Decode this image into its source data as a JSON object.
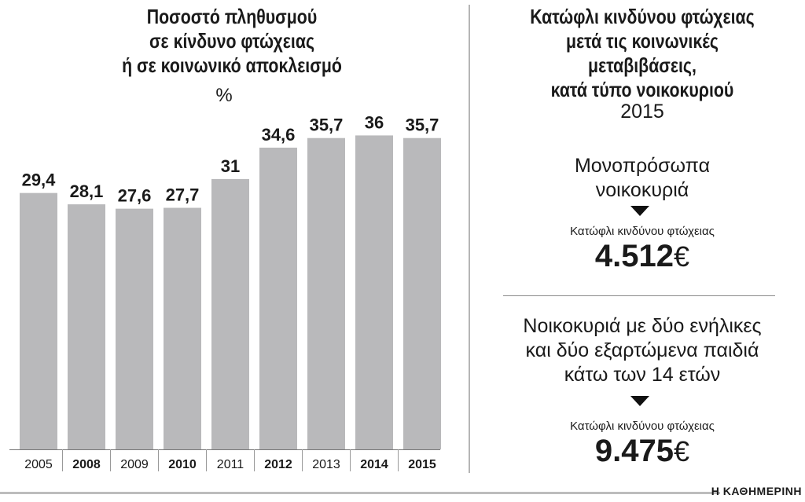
{
  "left": {
    "title_lines": [
      "Ποσοστό πληθυσμού",
      "σε κίνδυνο φτώχειας",
      "ή σε κοινωνικό αποκλεισμό"
    ],
    "unit": "%"
  },
  "chart_data": {
    "type": "bar",
    "categories": [
      "2005",
      "2008",
      "2009",
      "2010",
      "2011",
      "2012",
      "2013",
      "2014",
      "2015"
    ],
    "category_bold": [
      false,
      true,
      false,
      true,
      false,
      true,
      false,
      true,
      true
    ],
    "values": [
      29.4,
      28.1,
      27.6,
      27.7,
      31,
      34.6,
      35.7,
      36,
      35.7
    ],
    "value_labels": [
      "29,4",
      "28,1",
      "27,6",
      "27,7",
      "31",
      "34,6",
      "35,7",
      "36",
      "35,7"
    ],
    "title": "Ποσοστό πληθυσμού σε κίνδυνο φτώχειας ή σε κοινωνικό αποκλεισμό",
    "ylabel": "%",
    "ylim": [
      0,
      38
    ],
    "grid": false,
    "bar_color": "#b9b9bb"
  },
  "right": {
    "title_lines": [
      "Κατώφλι κινδύνου φτώχειας",
      "μετά τις κοινωνικές",
      "μεταβιβάσεις,",
      "κατά τύπο νοικοκυριού"
    ],
    "year": "2015",
    "households": [
      {
        "label_lines": [
          "Μονοπρόσωπα",
          "νοικοκυριά"
        ],
        "threshold_label": "Κατώφλι κινδύνου φτώχειας",
        "value": "4.512",
        "currency": "€"
      },
      {
        "label_lines": [
          "Νοικοκυριά με δύο ενήλικες",
          "και δύο εξαρτώμενα παιδιά",
          "κάτω των 14 ετών"
        ],
        "threshold_label": "Κατώφλι κινδύνου φτώχειας",
        "value": "9.475",
        "currency": "€"
      }
    ]
  },
  "brand": "Η ΚΑΘΗΜΕΡΙΝΗ"
}
